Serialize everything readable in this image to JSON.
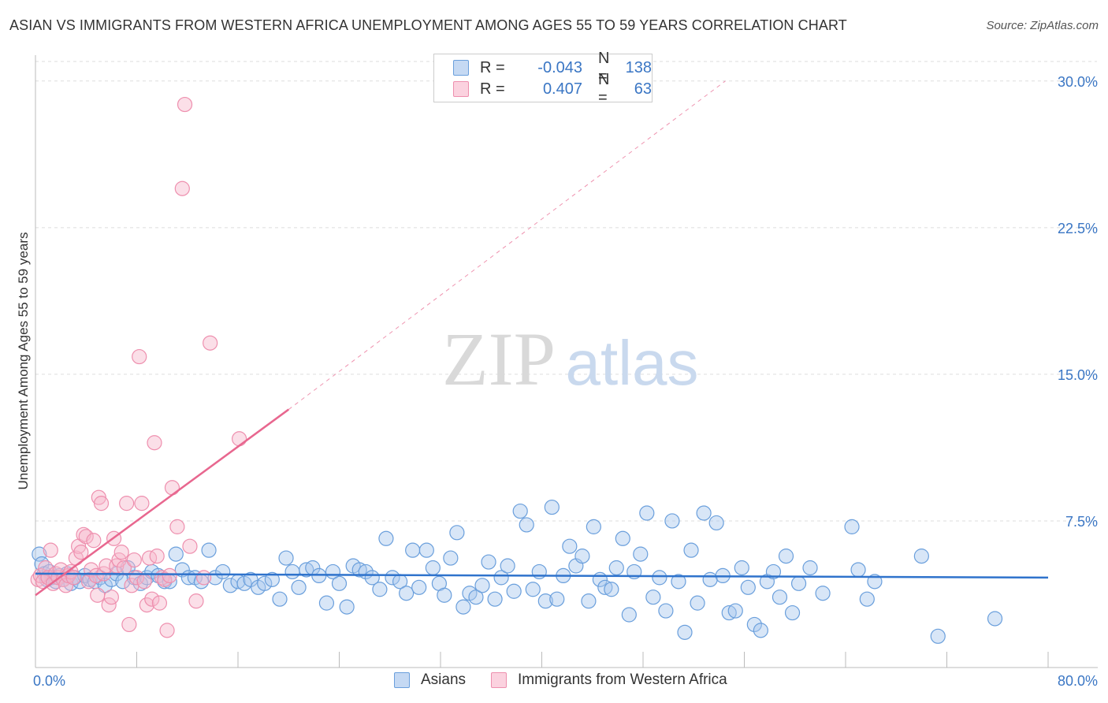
{
  "title": "ASIAN VS IMMIGRANTS FROM WESTERN AFRICA UNEMPLOYMENT AMONG AGES 55 TO 59 YEARS CORRELATION CHART",
  "source": "Source: ZipAtlas.com",
  "watermark": {
    "zip": "ZIP",
    "atlas": "atlas"
  },
  "colors": {
    "asian_fill": "#a9c7ee",
    "asian_stroke": "#6a9fdc",
    "asian_line": "#2f73cc",
    "waf_fill": "#f6b8cb",
    "waf_stroke": "#ee8fae",
    "waf_line": "#e8678f",
    "axis_label": "#3a76c4",
    "grid": "#dddddd"
  },
  "legend": {
    "rows": [
      {
        "r_label": "R =",
        "r_value": "-0.043",
        "n_label": "N =",
        "n_value": "138"
      },
      {
        "r_label": "R =",
        "r_value": "0.407",
        "n_label": "N =",
        "n_value": "63"
      }
    ]
  },
  "bottom_legend": {
    "asians": "Asians",
    "waf": "Immigrants from Western Africa"
  },
  "chart_data": {
    "type": "scatter",
    "title": "ASIAN VS IMMIGRANTS FROM WESTERN AFRICA UNEMPLOYMENT AMONG AGES 55 TO 59 YEARS CORRELATION CHART",
    "xlabel": "",
    "ylabel": "Unemployment Among Ages 55 to 59 years",
    "xlim": [
      0,
      80
    ],
    "ylim": [
      0,
      31
    ],
    "x_tick_labels": [
      "0.0%",
      "80.0%"
    ],
    "y_ticks": [
      7.5,
      15.0,
      22.5,
      30.0
    ],
    "y_tick_labels": [
      "7.5%",
      "15.0%",
      "22.5%",
      "30.0%"
    ],
    "grid": true,
    "series": [
      {
        "name": "Asians",
        "trend": {
          "x": [
            0,
            80
          ],
          "y": [
            4.8,
            4.6
          ],
          "dashed": false
        },
        "points": [
          [
            0.3,
            5.8
          ],
          [
            0.5,
            5.3
          ],
          [
            0.7,
            4.8
          ],
          [
            0.9,
            4.5
          ],
          [
            1.1,
            4.9
          ],
          [
            1.3,
            4.6
          ],
          [
            1.6,
            4.4
          ],
          [
            1.9,
            4.7
          ],
          [
            2.2,
            4.5
          ],
          [
            2.5,
            4.8
          ],
          [
            2.8,
            4.3
          ],
          [
            3.1,
            4.6
          ],
          [
            3.5,
            4.4
          ],
          [
            3.9,
            4.7
          ],
          [
            4.3,
            4.5
          ],
          [
            4.7,
            4.4
          ],
          [
            5.1,
            4.6
          ],
          [
            5.5,
            4.2
          ],
          [
            6.0,
            4.5
          ],
          [
            6.4,
            4.8
          ],
          [
            6.9,
            4.4
          ],
          [
            7.3,
            5.1
          ],
          [
            7.8,
            4.6
          ],
          [
            8.3,
            4.3
          ],
          [
            8.8,
            4.6
          ],
          [
            9.2,
            4.9
          ],
          [
            9.7,
            4.7
          ],
          [
            10.2,
            4.4
          ],
          [
            10.6,
            4.4
          ],
          [
            11.1,
            5.8
          ],
          [
            11.6,
            5.0
          ],
          [
            12.1,
            4.6
          ],
          [
            12.6,
            4.6
          ],
          [
            13.1,
            4.4
          ],
          [
            13.7,
            6.0
          ],
          [
            14.2,
            4.6
          ],
          [
            14.8,
            4.9
          ],
          [
            15.4,
            4.2
          ],
          [
            16.0,
            4.4
          ],
          [
            16.5,
            4.3
          ],
          [
            17.0,
            4.5
          ],
          [
            17.6,
            4.1
          ],
          [
            18.1,
            4.3
          ],
          [
            18.7,
            4.5
          ],
          [
            19.3,
            3.5
          ],
          [
            19.8,
            5.6
          ],
          [
            20.3,
            4.9
          ],
          [
            20.8,
            4.1
          ],
          [
            21.4,
            5.0
          ],
          [
            21.9,
            5.1
          ],
          [
            22.4,
            4.7
          ],
          [
            23.0,
            3.3
          ],
          [
            23.5,
            4.9
          ],
          [
            24.0,
            4.3
          ],
          [
            24.6,
            3.1
          ],
          [
            25.1,
            5.2
          ],
          [
            25.6,
            5.0
          ],
          [
            26.1,
            4.9
          ],
          [
            26.6,
            4.6
          ],
          [
            27.2,
            4.0
          ],
          [
            27.7,
            6.6
          ],
          [
            28.2,
            4.6
          ],
          [
            28.8,
            4.4
          ],
          [
            29.3,
            3.8
          ],
          [
            29.8,
            6.0
          ],
          [
            30.3,
            4.1
          ],
          [
            30.9,
            6.0
          ],
          [
            31.4,
            5.1
          ],
          [
            31.9,
            4.3
          ],
          [
            32.3,
            3.7
          ],
          [
            32.8,
            5.6
          ],
          [
            33.3,
            6.9
          ],
          [
            33.8,
            3.1
          ],
          [
            34.3,
            3.8
          ],
          [
            34.8,
            3.6
          ],
          [
            35.3,
            4.2
          ],
          [
            35.8,
            5.4
          ],
          [
            36.3,
            3.5
          ],
          [
            36.8,
            4.6
          ],
          [
            37.3,
            5.2
          ],
          [
            37.8,
            3.9
          ],
          [
            38.3,
            8.0
          ],
          [
            38.8,
            7.3
          ],
          [
            39.3,
            4.0
          ],
          [
            39.8,
            4.9
          ],
          [
            40.3,
            3.4
          ],
          [
            40.8,
            8.2
          ],
          [
            41.2,
            3.5
          ],
          [
            41.7,
            4.7
          ],
          [
            42.2,
            6.2
          ],
          [
            42.7,
            5.2
          ],
          [
            43.2,
            5.7
          ],
          [
            43.7,
            3.4
          ],
          [
            44.1,
            7.2
          ],
          [
            44.6,
            4.5
          ],
          [
            45.0,
            4.1
          ],
          [
            45.5,
            4.0
          ],
          [
            45.9,
            5.1
          ],
          [
            46.4,
            6.6
          ],
          [
            46.9,
            2.7
          ],
          [
            47.3,
            4.9
          ],
          [
            47.8,
            5.8
          ],
          [
            48.3,
            7.9
          ],
          [
            48.8,
            3.6
          ],
          [
            49.3,
            4.6
          ],
          [
            49.8,
            2.9
          ],
          [
            50.3,
            7.5
          ],
          [
            50.8,
            4.4
          ],
          [
            51.3,
            1.8
          ],
          [
            51.8,
            6.0
          ],
          [
            52.3,
            3.3
          ],
          [
            52.8,
            7.9
          ],
          [
            53.3,
            4.5
          ],
          [
            53.8,
            7.4
          ],
          [
            54.3,
            4.7
          ],
          [
            54.8,
            2.8
          ],
          [
            55.3,
            2.9
          ],
          [
            55.8,
            5.1
          ],
          [
            56.3,
            4.1
          ],
          [
            56.8,
            2.2
          ],
          [
            57.3,
            1.9
          ],
          [
            57.8,
            4.4
          ],
          [
            58.3,
            4.9
          ],
          [
            58.8,
            3.6
          ],
          [
            59.3,
            5.7
          ],
          [
            59.8,
            2.8
          ],
          [
            60.3,
            4.3
          ],
          [
            61.2,
            5.1
          ],
          [
            62.2,
            3.8
          ],
          [
            64.5,
            7.2
          ],
          [
            65.0,
            5.0
          ],
          [
            65.7,
            3.5
          ],
          [
            66.3,
            4.4
          ],
          [
            70.0,
            5.7
          ],
          [
            71.3,
            1.6
          ],
          [
            75.8,
            2.5
          ]
        ]
      },
      {
        "name": "Immigrants from Western Africa",
        "trend": {
          "x": [
            0,
            20
          ],
          "y": [
            3.7,
            13.2
          ],
          "dashed": false,
          "extension": {
            "x": [
              20,
              54.5
            ],
            "y": [
              13.2,
              30.0
            ],
            "dashed": true
          }
        },
        "points": [
          [
            0.2,
            4.5
          ],
          [
            0.4,
            4.7
          ],
          [
            0.6,
            4.4
          ],
          [
            0.8,
            5.1
          ],
          [
            1.0,
            4.6
          ],
          [
            1.2,
            6.0
          ],
          [
            1.4,
            4.3
          ],
          [
            1.6,
            4.8
          ],
          [
            1.8,
            4.6
          ],
          [
            2.0,
            5.0
          ],
          [
            2.2,
            4.5
          ],
          [
            2.4,
            4.2
          ],
          [
            2.6,
            4.7
          ],
          [
            2.8,
            4.9
          ],
          [
            3.0,
            4.6
          ],
          [
            3.2,
            5.6
          ],
          [
            3.4,
            6.2
          ],
          [
            3.6,
            5.9
          ],
          [
            3.8,
            6.8
          ],
          [
            4.0,
            6.7
          ],
          [
            4.2,
            4.4
          ],
          [
            4.4,
            5.0
          ],
          [
            4.6,
            6.5
          ],
          [
            4.8,
            4.7
          ],
          [
            5.0,
            8.7
          ],
          [
            5.2,
            8.4
          ],
          [
            5.4,
            4.8
          ],
          [
            5.6,
            5.2
          ],
          [
            5.8,
            3.2
          ],
          [
            6.0,
            3.6
          ],
          [
            6.2,
            6.6
          ],
          [
            6.4,
            5.2
          ],
          [
            6.6,
            5.5
          ],
          [
            6.8,
            5.9
          ],
          [
            7.0,
            5.1
          ],
          [
            7.2,
            8.4
          ],
          [
            7.4,
            2.2
          ],
          [
            7.6,
            4.2
          ],
          [
            7.8,
            5.5
          ],
          [
            8.0,
            4.6
          ],
          [
            8.2,
            15.9
          ],
          [
            8.4,
            8.4
          ],
          [
            8.6,
            4.4
          ],
          [
            8.8,
            3.2
          ],
          [
            9.0,
            5.6
          ],
          [
            9.2,
            3.5
          ],
          [
            9.4,
            11.5
          ],
          [
            9.6,
            5.7
          ],
          [
            9.8,
            3.3
          ],
          [
            10.0,
            4.6
          ],
          [
            10.2,
            4.5
          ],
          [
            10.4,
            1.9
          ],
          [
            10.6,
            4.7
          ],
          [
            10.8,
            9.2
          ],
          [
            11.2,
            7.2
          ],
          [
            11.6,
            24.5
          ],
          [
            11.8,
            28.8
          ],
          [
            12.2,
            6.2
          ],
          [
            12.7,
            3.4
          ],
          [
            13.3,
            4.6
          ],
          [
            13.8,
            16.6
          ],
          [
            16.1,
            11.7
          ],
          [
            4.9,
            3.7
          ]
        ]
      }
    ]
  }
}
